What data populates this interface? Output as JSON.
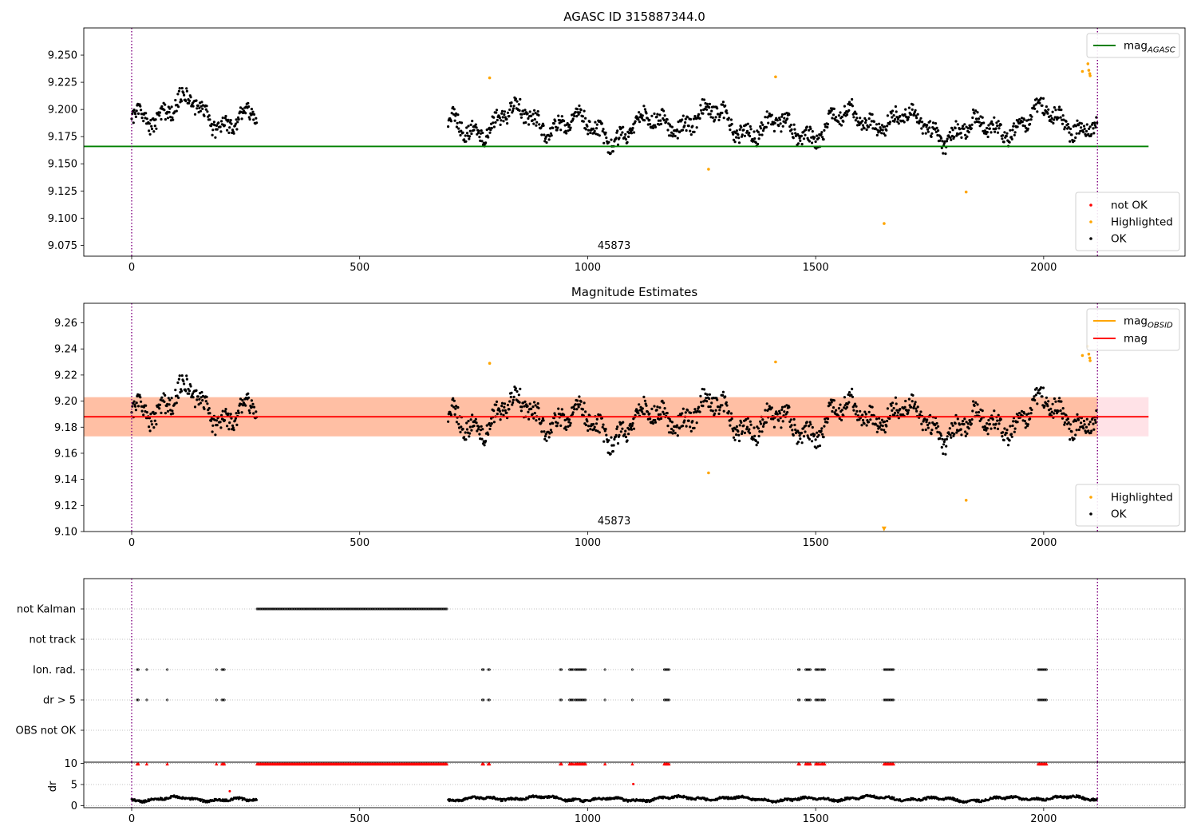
{
  "chart_data": [
    {
      "id": "top",
      "type": "scatter",
      "title": "AGASC ID 315887344.0",
      "xlabel": "",
      "ylabel": "",
      "xlim": [
        -105,
        2310
      ],
      "ylim": [
        9.065,
        9.275
      ],
      "yticks": [
        9.075,
        9.1,
        9.125,
        9.15,
        9.175,
        9.2,
        9.225,
        9.25
      ],
      "ytick_labels": [
        "9.075",
        "9.100",
        "9.125",
        "9.150",
        "9.175",
        "9.200",
        "9.225",
        "9.250"
      ],
      "xticks": [
        0,
        500,
        1000,
        1500,
        2000
      ],
      "xtick_labels": [
        "0",
        "500",
        "1000",
        "1500",
        "2000"
      ],
      "grid": false,
      "vlines": [
        0,
        2118
      ],
      "hline": {
        "y": 9.166,
        "x": [
          -105,
          2230
        ],
        "color": "#008000"
      },
      "annotation": {
        "text": "45873",
        "x": 1058
      },
      "legend_lines": [
        {
          "base": "mag",
          "sub": "AGASC",
          "color": "#008000"
        }
      ],
      "legend_points": [
        {
          "label": "not OK",
          "color": "#ff0000"
        },
        {
          "label": "Highlighted",
          "color": "#ffa500"
        },
        {
          "label": "OK",
          "color": "#000000"
        }
      ],
      "series": [
        {
          "name": "OK",
          "color": "#000000",
          "segments": [
            {
              "x": [
                0,
                275
              ],
              "level": 9.194,
              "amp": 0.026
            },
            {
              "x": [
                694,
                2118
              ],
              "level": 9.186,
              "amp": 0.025
            }
          ]
        },
        {
          "name": "Highlighted",
          "color": "#ffa500",
          "points": [
            [
              785,
              9.229
            ],
            [
              1265,
              9.145
            ],
            [
              1412,
              9.23
            ],
            [
              1650,
              9.095
            ],
            [
              1830,
              9.124
            ],
            [
              2085,
              9.235
            ],
            [
              2097,
              9.242
            ],
            [
              2099,
              9.236
            ],
            [
              2101,
              9.233
            ],
            [
              2102,
              9.231
            ]
          ]
        }
      ]
    },
    {
      "id": "mid",
      "type": "scatter",
      "title": "Magnitude Estimates",
      "xlabel": "",
      "ylabel": "",
      "xlim": [
        -105,
        2310
      ],
      "ylim": [
        9.1,
        9.275
      ],
      "yticks": [
        9.1,
        9.12,
        9.14,
        9.16,
        9.18,
        9.2,
        9.22,
        9.24,
        9.26
      ],
      "ytick_labels": [
        "9.10",
        "9.12",
        "9.14",
        "9.16",
        "9.18",
        "9.20",
        "9.22",
        "9.24",
        "9.26"
      ],
      "xticks": [
        0,
        500,
        1000,
        1500,
        2000
      ],
      "xtick_labels": [
        "0",
        "500",
        "1000",
        "1500",
        "2000"
      ],
      "grid": false,
      "vlines": [
        0,
        2118
      ],
      "hline": {
        "y": 9.188,
        "x": [
          -105,
          2230
        ],
        "color": "#ff0000"
      },
      "bands": [
        {
          "x": [
            -105,
            2118
          ],
          "y": [
            9.173,
            9.203
          ],
          "color": "#ffb998"
        },
        {
          "x": [
            -105,
            2230
          ],
          "y": [
            9.173,
            9.203
          ],
          "color": "#ffdde3"
        }
      ],
      "annotation": {
        "text": "45873",
        "x": 1058
      },
      "legend_lines": [
        {
          "base": "mag",
          "sub": "OBSID",
          "color": "#ffa500"
        },
        {
          "base": "mag",
          "sub": "",
          "color": "#ff0000"
        }
      ],
      "legend_points": [
        {
          "label": "Highlighted",
          "color": "#ffa500"
        },
        {
          "label": "OK",
          "color": "#000000"
        }
      ],
      "series": [
        {
          "name": "OK",
          "color": "#000000",
          "segments": [
            {
              "x": [
                0,
                275
              ],
              "level": 9.194,
              "amp": 0.026
            },
            {
              "x": [
                694,
                2118
              ],
              "level": 9.186,
              "amp": 0.025
            }
          ]
        },
        {
          "name": "Highlighted",
          "color": "#ffa500",
          "points": [
            [
              785,
              9.229
            ],
            [
              1265,
              9.145
            ],
            [
              1412,
              9.23
            ],
            [
              1830,
              9.124
            ],
            [
              2085,
              9.235
            ],
            [
              2097,
              9.242
            ],
            [
              2099,
              9.236
            ],
            [
              2101,
              9.233
            ],
            [
              2102,
              9.231
            ]
          ]
        },
        {
          "name": "Highlighted (clipped)",
          "color": "#ffa500",
          "marker": "triangle-down",
          "points": [
            [
              1650,
              9.102
            ]
          ]
        }
      ]
    },
    {
      "id": "flags",
      "type": "scatter",
      "title": "",
      "xlabel": "",
      "ylabel": "",
      "xlim": [
        -105,
        2310
      ],
      "categories": [
        "not Kalman",
        "not track",
        "Ion. rad.",
        "dr > 5",
        "OBS not OK"
      ],
      "grid": true,
      "vlines": [
        0,
        2118
      ],
      "series": [
        {
          "name": "not Kalman",
          "color": "#000000",
          "ranges": [
            [
              275,
              692
            ]
          ]
        },
        {
          "name": "not track",
          "color": "#000000",
          "ranges": []
        },
        {
          "name": "Ion. rad.",
          "color": "#000000",
          "ranges": [
            [
              12,
              16
            ],
            [
              33,
              35
            ],
            [
              78,
              79
            ],
            [
              186,
              188
            ],
            [
              198,
              204
            ],
            [
              769,
              773
            ],
            [
              782,
              786
            ],
            [
              940,
              944
            ],
            [
              960,
              968
            ],
            [
              972,
              998
            ],
            [
              1038,
              1040
            ],
            [
              1098,
              1100
            ],
            [
              1168,
              1180
            ],
            [
              1462,
              1466
            ],
            [
              1478,
              1490
            ],
            [
              1500,
              1510
            ],
            [
              1512,
              1522
            ],
            [
              1650,
              1672
            ],
            [
              1988,
              2008
            ]
          ]
        },
        {
          "name": "dr > 5",
          "color": "#000000",
          "ranges": [
            [
              12,
              16
            ],
            [
              33,
              35
            ],
            [
              78,
              79
            ],
            [
              186,
              188
            ],
            [
              198,
              204
            ],
            [
              769,
              773
            ],
            [
              782,
              786
            ],
            [
              940,
              944
            ],
            [
              960,
              968
            ],
            [
              972,
              998
            ],
            [
              1038,
              1040
            ],
            [
              1098,
              1100
            ],
            [
              1168,
              1180
            ],
            [
              1462,
              1466
            ],
            [
              1478,
              1490
            ],
            [
              1500,
              1510
            ],
            [
              1512,
              1522
            ],
            [
              1650,
              1672
            ],
            [
              1988,
              2008
            ]
          ]
        },
        {
          "name": "OBS not OK",
          "color": "#000000",
          "ranges": []
        }
      ]
    },
    {
      "id": "dr",
      "type": "scatter",
      "title": "",
      "xlabel": "",
      "ylabel": "dr",
      "xlim": [
        -105,
        2310
      ],
      "ylim": [
        -0.5,
        10.3
      ],
      "yticks": [
        0,
        5,
        10
      ],
      "ytick_labels": [
        "0",
        "5",
        "10"
      ],
      "xticks": [
        0,
        500,
        1000,
        1500,
        2000
      ],
      "xtick_labels": [
        "0",
        "500",
        "1000",
        "1500",
        "2000"
      ],
      "grid": true,
      "vlines": [
        0,
        2118
      ],
      "series": [
        {
          "name": "dr",
          "color": "#000000",
          "segments": [
            {
              "x": [
                0,
                275
              ],
              "level": 1.4,
              "amp": 0.9
            },
            {
              "x": [
                694,
                2118
              ],
              "level": 1.6,
              "amp": 0.9
            }
          ]
        },
        {
          "name": "dr clipped",
          "color": "#ff0000",
          "marker": "triangle-up",
          "ranges": [
            [
              12,
              16
            ],
            [
              33,
              35
            ],
            [
              78,
              79
            ],
            [
              186,
              188
            ],
            [
              198,
              204
            ],
            [
              275,
              692
            ],
            [
              769,
              773
            ],
            [
              782,
              786
            ],
            [
              940,
              944
            ],
            [
              960,
              968
            ],
            [
              972,
              998
            ],
            [
              1038,
              1040
            ],
            [
              1098,
              1100
            ],
            [
              1168,
              1180
            ],
            [
              1462,
              1466
            ],
            [
              1478,
              1490
            ],
            [
              1500,
              1510
            ],
            [
              1512,
              1522
            ],
            [
              1650,
              1672
            ],
            [
              1988,
              2008
            ]
          ],
          "y": 9.9
        },
        {
          "name": "dr outliers",
          "color": "#ff0000",
          "points": [
            [
              215,
              3.4
            ],
            [
              1100,
              5.1
            ]
          ]
        }
      ]
    }
  ]
}
